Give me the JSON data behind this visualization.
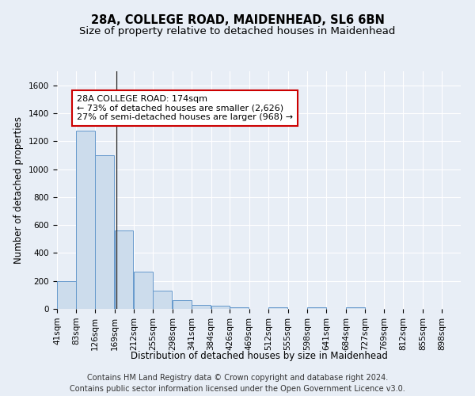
{
  "title_line1": "28A, COLLEGE ROAD, MAIDENHEAD, SL6 6BN",
  "title_line2": "Size of property relative to detached houses in Maidenhead",
  "xlabel": "Distribution of detached houses by size in Maidenhead",
  "ylabel": "Number of detached properties",
  "footnote_line1": "Contains HM Land Registry data © Crown copyright and database right 2024.",
  "footnote_line2": "Contains public sector information licensed under the Open Government Licence v3.0.",
  "bar_edges": [
    41,
    83,
    126,
    169,
    212,
    255,
    298,
    341,
    384,
    426,
    469,
    512,
    555,
    598,
    641,
    684,
    727,
    769,
    812,
    855,
    898
  ],
  "bar_heights": [
    200,
    1275,
    1100,
    560,
    265,
    130,
    60,
    30,
    20,
    10,
    0,
    10,
    0,
    10,
    0,
    10,
    0,
    0,
    0,
    0,
    0
  ],
  "bar_color": "#ccdcec",
  "bar_edgecolor": "#6699cc",
  "vline_x": 174,
  "vline_color": "#333333",
  "annotation_text": "28A COLLEGE ROAD: 174sqm\n← 73% of detached houses are smaller (2,626)\n27% of semi-detached houses are larger (968) →",
  "annotation_box_facecolor": "white",
  "annotation_box_edgecolor": "#cc0000",
  "ylim": [
    0,
    1700
  ],
  "yticks": [
    0,
    200,
    400,
    600,
    800,
    1000,
    1200,
    1400,
    1600
  ],
  "background_color": "#e8eef6",
  "grid_color": "#ffffff",
  "title_fontsize": 10.5,
  "subtitle_fontsize": 9.5,
  "axis_label_fontsize": 8.5,
  "tick_fontsize": 7.5,
  "annotation_fontsize": 8,
  "footnote_fontsize": 7
}
